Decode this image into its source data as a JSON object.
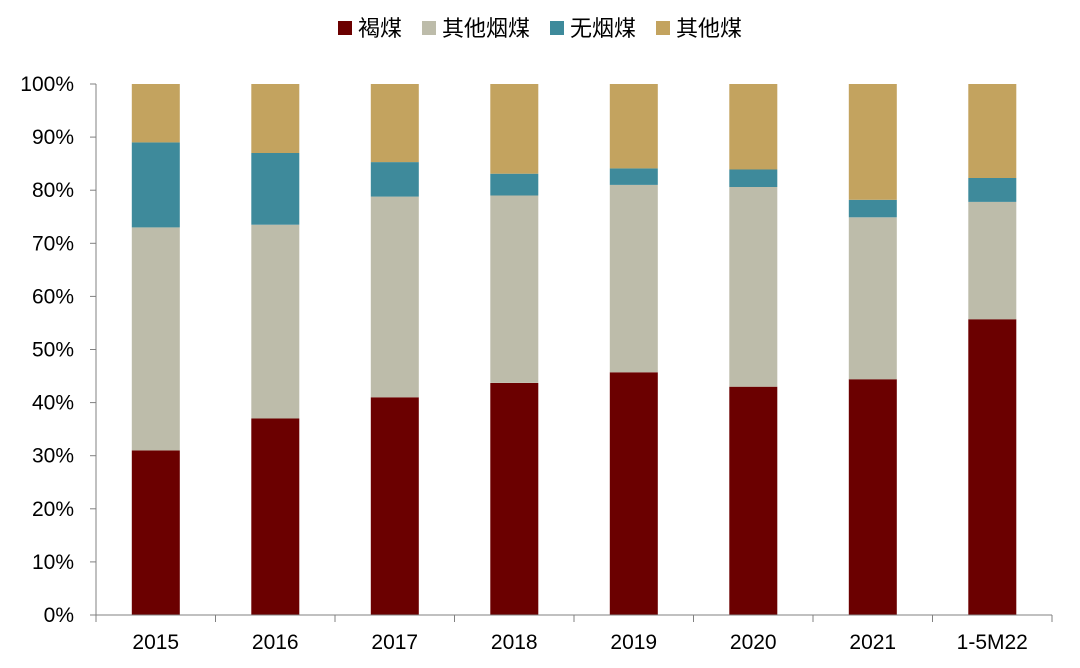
{
  "chart_data": {
    "type": "bar",
    "stacked": true,
    "percent": true,
    "categories": [
      "2015",
      "2016",
      "2017",
      "2018",
      "2019",
      "2020",
      "2021",
      "1-5M22"
    ],
    "series": [
      {
        "name": "褐煤",
        "color": "#6B0000",
        "values": [
          31.0,
          37.0,
          41.0,
          43.7,
          45.7,
          43.0,
          44.4,
          55.7
        ]
      },
      {
        "name": "其他烟煤",
        "color": "#BDBCAA",
        "values": [
          42.0,
          36.5,
          37.8,
          35.3,
          35.3,
          37.6,
          30.5,
          22.1
        ]
      },
      {
        "name": "无烟煤",
        "color": "#3E8A9B",
        "values": [
          16.0,
          13.5,
          6.5,
          4.1,
          3.1,
          3.3,
          3.3,
          4.5
        ]
      },
      {
        "name": "其他煤",
        "color": "#C3A35F",
        "values": [
          11.0,
          13.0,
          14.7,
          16.9,
          15.9,
          16.1,
          21.8,
          17.7
        ]
      }
    ],
    "y_ticks": [
      "0%",
      "10%",
      "20%",
      "30%",
      "40%",
      "50%",
      "60%",
      "70%",
      "80%",
      "90%",
      "100%"
    ],
    "ylim": [
      0,
      100
    ],
    "legend_position": "top",
    "grid": false,
    "title": "",
    "xlabel": "",
    "ylabel": ""
  }
}
